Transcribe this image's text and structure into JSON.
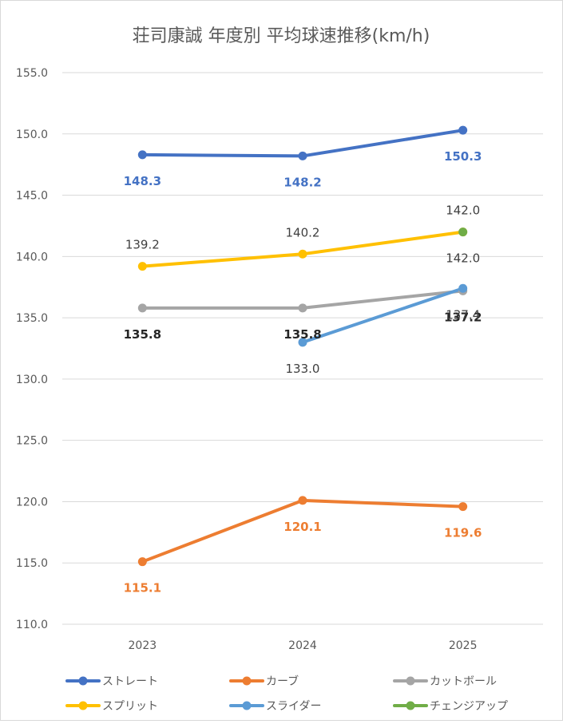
{
  "chart_data": {
    "type": "line",
    "title": "荘司康誠 年度別 平均球速推移(km/h)",
    "xlabel": "",
    "ylabel": "",
    "categories": [
      "2023",
      "2024",
      "2025"
    ],
    "ylim": [
      110.0,
      155.0
    ],
    "yticks": [
      "110.0",
      "115.0",
      "120.0",
      "125.0",
      "130.0",
      "135.0",
      "140.0",
      "145.0",
      "150.0",
      "155.0"
    ],
    "grid": true,
    "legend_position": "bottom",
    "series": [
      {
        "name": "ストレート",
        "color": "#4472c4",
        "values": [
          148.3,
          148.2,
          150.3
        ],
        "labels": [
          "148.3",
          "148.2",
          "150.3"
        ],
        "label_pos": "below"
      },
      {
        "name": "カーブ",
        "color": "#ed7d31",
        "values": [
          115.1,
          120.1,
          119.6
        ],
        "labels": [
          "115.1",
          "120.1",
          "119.6"
        ],
        "label_pos": "below"
      },
      {
        "name": "カットボール",
        "color": "#a5a5a5",
        "values": [
          135.8,
          135.8,
          137.2
        ],
        "labels": [
          "135.8",
          "135.8",
          "137.2"
        ],
        "label_pos": "below"
      },
      {
        "name": "スプリット",
        "color": "#ffc000",
        "values": [
          139.2,
          140.2,
          142.0
        ],
        "labels": [
          "139.2",
          "140.2",
          "142.0"
        ],
        "label_pos": "above"
      },
      {
        "name": "スライダー",
        "color": "#5b9bd5",
        "values": [
          null,
          133.0,
          137.4
        ],
        "labels": [
          "",
          "133.0",
          "137.4"
        ],
        "label_pos": "below"
      },
      {
        "name": "チェンジアップ",
        "color": "#70ad47",
        "values": [
          null,
          null,
          142.0
        ],
        "labels": [
          "",
          "",
          "142.0"
        ],
        "label_pos": "below"
      }
    ]
  }
}
